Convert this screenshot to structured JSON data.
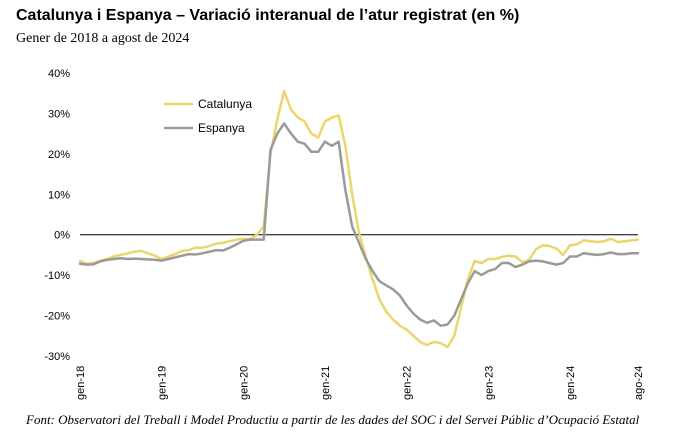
{
  "title": "Catalunya i Espanya – Variació interanual de l’atur registrat (en %)",
  "subtitle": "Gener de 2018 a agost de 2024",
  "source": "Font: Observatori del Treball i Model Productiu a partir de les dades del SOC i del Servei Públic d’Ocupació Estatal",
  "chart_data": {
    "type": "line",
    "y_ticks": [
      "40%",
      "30%",
      "20%",
      "10%",
      "0%",
      "-10%",
      "-20%",
      "-30%"
    ],
    "x_ticks": [
      "gen-18",
      "gen-19",
      "gen-20",
      "gen-21",
      "gen-22",
      "gen-23",
      "gen-24",
      "ago-24"
    ],
    "ylim": [
      -30,
      40
    ],
    "legend_position": "top-left",
    "series": [
      {
        "name": "Catalunya",
        "color": "#ecd56b",
        "values": [
          -6.5,
          -7.2,
          -7.0,
          -6.4,
          -6.0,
          -5.4,
          -5.0,
          -4.6,
          -4.2,
          -4.0,
          -4.6,
          -5.2,
          -6.0,
          -5.4,
          -4.8,
          -4.0,
          -3.8,
          -3.2,
          -3.2,
          -2.8,
          -2.2,
          -2.0,
          -1.6,
          -1.2,
          -1.0,
          -1.1,
          0.0,
          2.0,
          20.0,
          28.5,
          35.5,
          31.0,
          29.0,
          28.0,
          25.0,
          24.0,
          28.0,
          29.0,
          29.5,
          22.0,
          10.0,
          0.5,
          -5.5,
          -11.0,
          -16.0,
          -19.0,
          -21.0,
          -22.5,
          -23.5,
          -25.0,
          -26.5,
          -27.3,
          -26.5,
          -26.8,
          -27.8,
          -25.0,
          -18.0,
          -11.0,
          -6.5,
          -7.0,
          -6.0,
          -6.0,
          -5.5,
          -5.2,
          -5.4,
          -6.8,
          -6.2,
          -3.6,
          -2.6,
          -2.8,
          -3.4,
          -5.0,
          -2.6,
          -2.4,
          -1.4,
          -1.6,
          -1.8,
          -1.6,
          -1.0,
          -1.8,
          -1.6,
          -1.4,
          -1.2
        ]
      },
      {
        "name": "Espanya",
        "color": "#9a9a9a",
        "values": [
          -7.2,
          -7.4,
          -7.3,
          -6.6,
          -6.2,
          -6.0,
          -5.8,
          -6.0,
          -5.9,
          -6.0,
          -6.1,
          -6.2,
          -6.4,
          -6.0,
          -5.6,
          -5.2,
          -4.8,
          -4.9,
          -4.6,
          -4.2,
          -3.8,
          -3.9,
          -3.2,
          -2.4,
          -1.5,
          -1.2,
          -1.2,
          -1.2,
          21.0,
          25.0,
          27.5,
          25.0,
          23.0,
          22.5,
          20.5,
          20.5,
          23.0,
          22.0,
          23.0,
          11.0,
          2.0,
          -2.0,
          -6.0,
          -9.0,
          -11.5,
          -12.5,
          -13.5,
          -15.0,
          -17.5,
          -19.5,
          -21.0,
          -21.8,
          -21.2,
          -22.5,
          -22.2,
          -20.0,
          -16.0,
          -12.0,
          -9.0,
          -10.0,
          -9.0,
          -8.5,
          -7.0,
          -7.0,
          -8.0,
          -7.4,
          -6.6,
          -6.4,
          -6.6,
          -7.0,
          -7.4,
          -7.0,
          -5.4,
          -5.4,
          -4.6,
          -4.8,
          -5.0,
          -4.8,
          -4.4,
          -4.8,
          -4.8,
          -4.6,
          -4.6
        ]
      }
    ]
  }
}
